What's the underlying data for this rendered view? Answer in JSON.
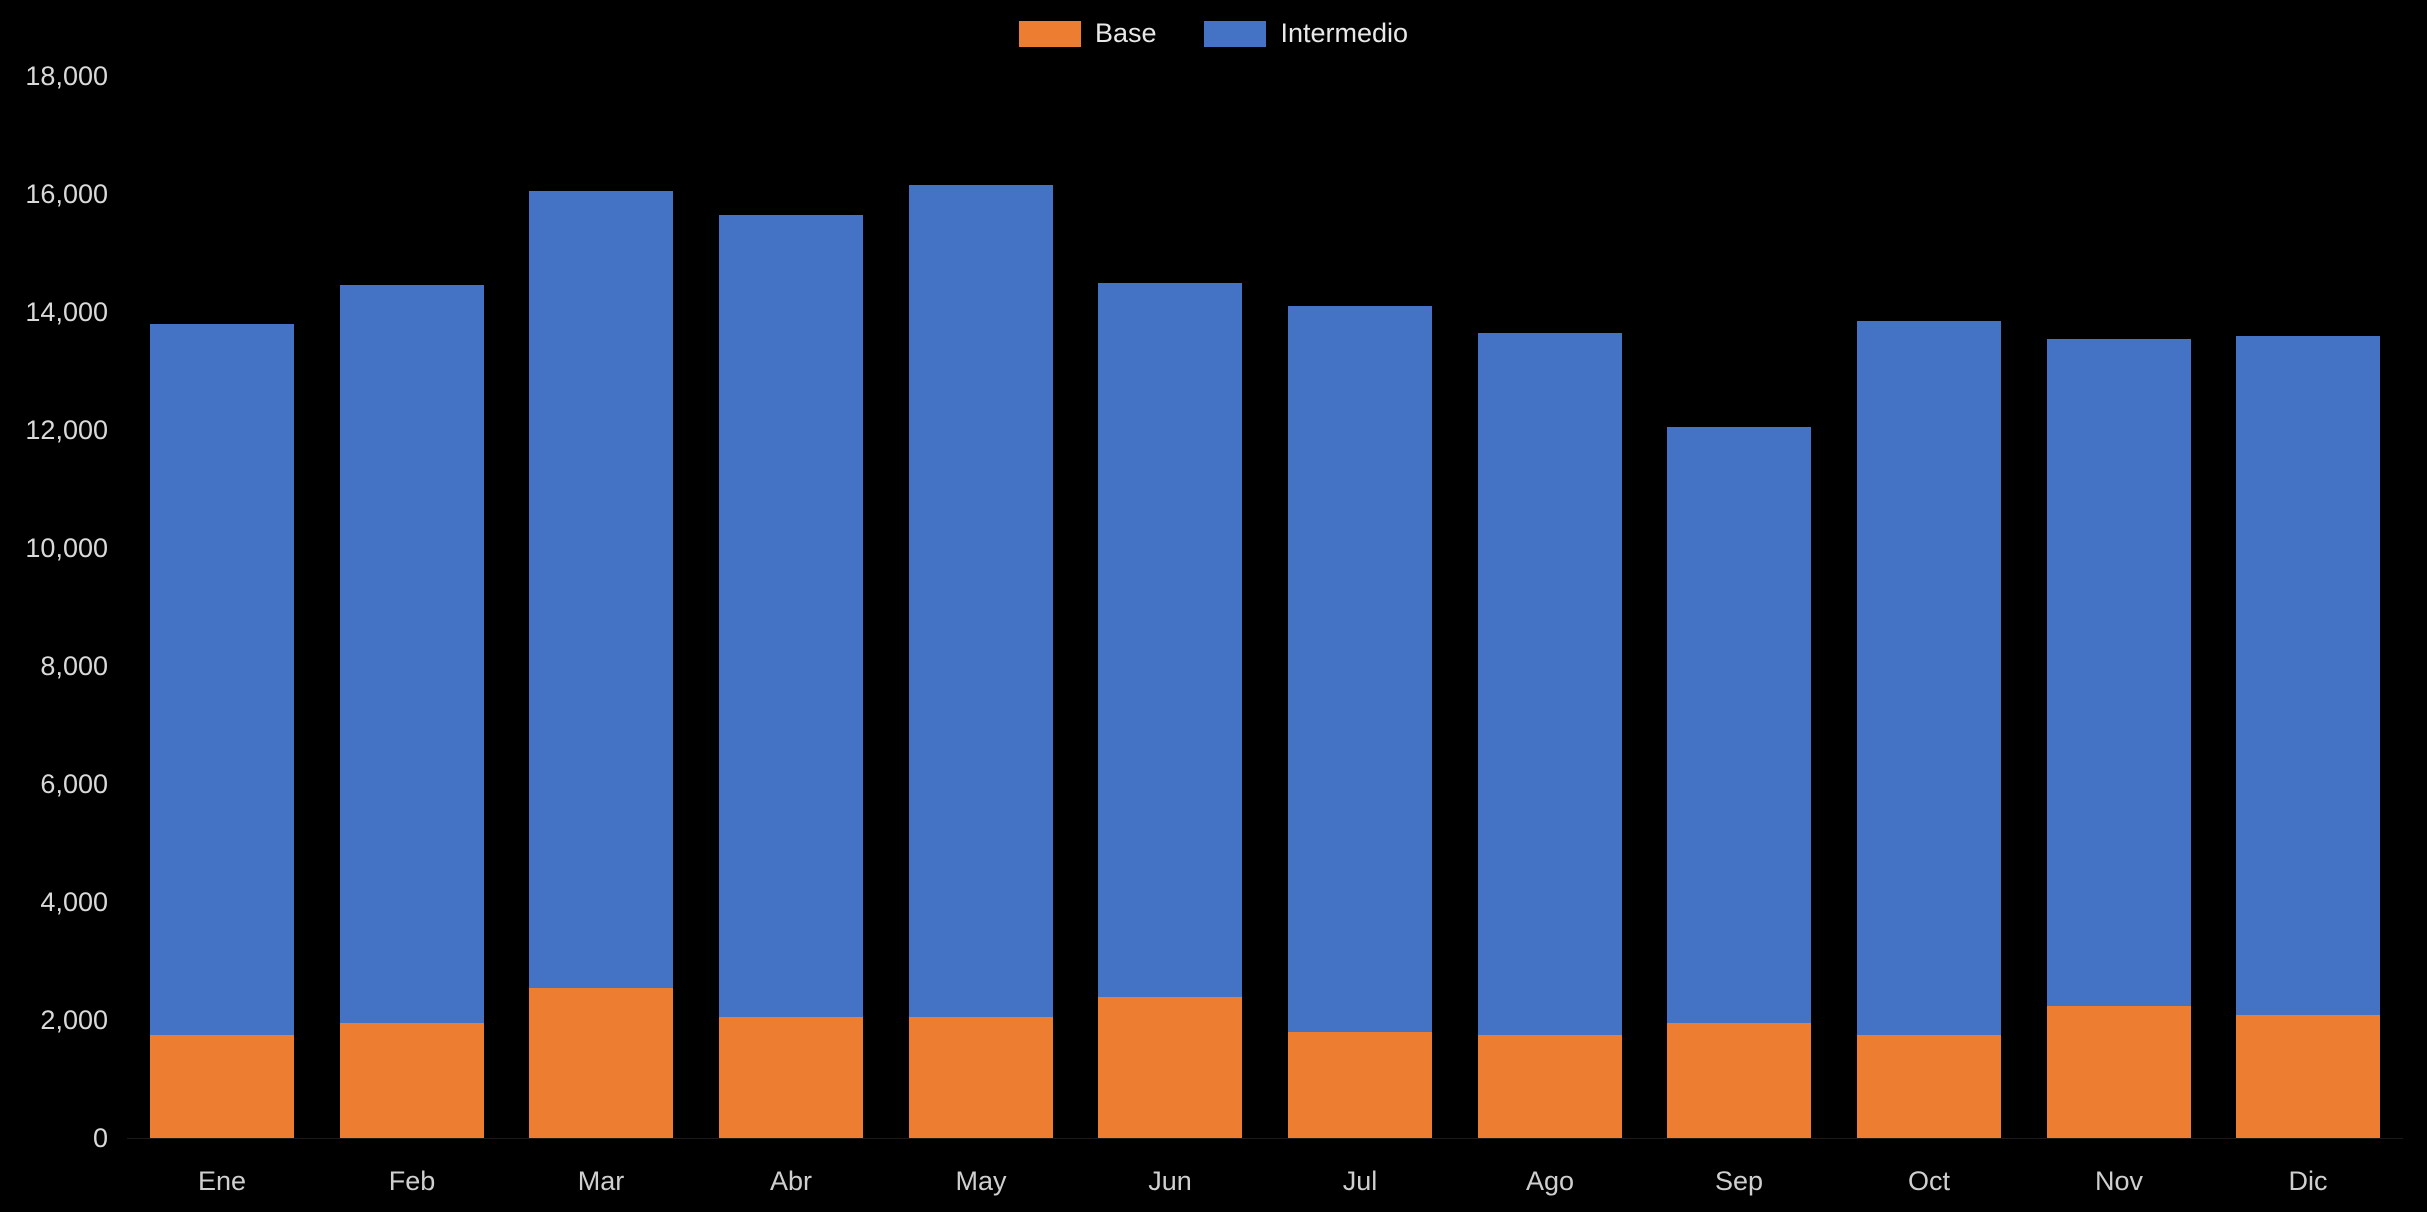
{
  "chart": {
    "legend": [
      {
        "label": "Base",
        "color": "#ED7D31"
      },
      {
        "label": "Intermedio",
        "color": "#4472C4"
      }
    ],
    "chart_data": {
      "type": "bar",
      "stacked": true,
      "title": "",
      "xlabel": "",
      "ylabel": "",
      "categories": [
        "Ene",
        "Feb",
        "Mar",
        "Abr",
        "May",
        "Jun",
        "Jul",
        "Ago",
        "Sep",
        "Oct",
        "Nov",
        "Dic"
      ],
      "series": [
        {
          "name": "Base",
          "color": "#ED7D31",
          "values": [
            1750,
            1950,
            2550,
            2050,
            2050,
            2400,
            1800,
            1750,
            1950,
            1750,
            2250,
            2100
          ]
        },
        {
          "name": "Intermedio",
          "color": "#4472C4",
          "values": [
            12050,
            12500,
            13500,
            13600,
            14100,
            12100,
            12300,
            11900,
            10100,
            12100,
            11300,
            11500
          ]
        }
      ],
      "totals": [
        13800,
        14450,
        16050,
        15650,
        16150,
        14500,
        14100,
        13650,
        12050,
        13850,
        13550,
        13600
      ],
      "ylim": [
        0,
        18000
      ],
      "ytick_step": 2000,
      "yticks": [
        "0",
        "2,000",
        "4,000",
        "6,000",
        "8,000",
        "10,000",
        "12,000",
        "14,000",
        "16,000",
        "18,000"
      ],
      "grid": false,
      "legend_position": "top-center",
      "background": "#000000",
      "text_color": "#D9D9D9"
    }
  }
}
